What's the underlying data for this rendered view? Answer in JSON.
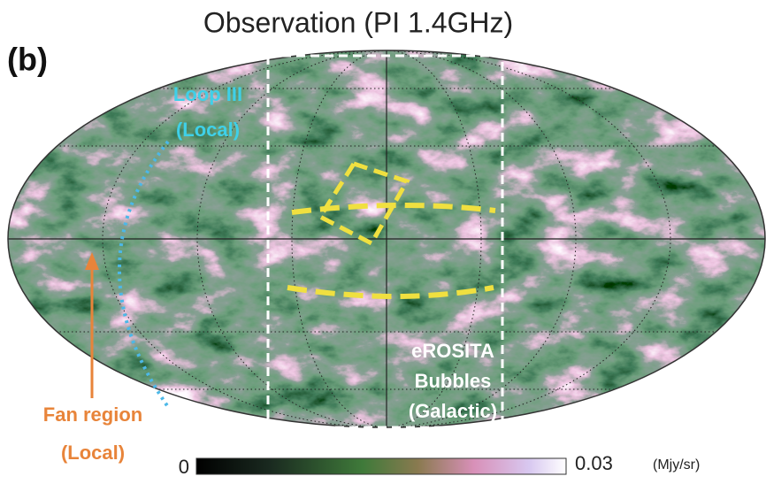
{
  "title": "Observation (PI 1.4GHz)",
  "panel_label": "(b)",
  "annotations": {
    "loop_iii": [
      "Loop III",
      "(Local)"
    ],
    "fan_region": [
      "Fan region",
      "(Local)"
    ],
    "erosita": [
      "eROSITA",
      "Bubbles",
      "(Galactic)"
    ]
  },
  "colorbar": {
    "min": "0",
    "max": "0.03",
    "unit": "(Mjy/sr)"
  }
}
